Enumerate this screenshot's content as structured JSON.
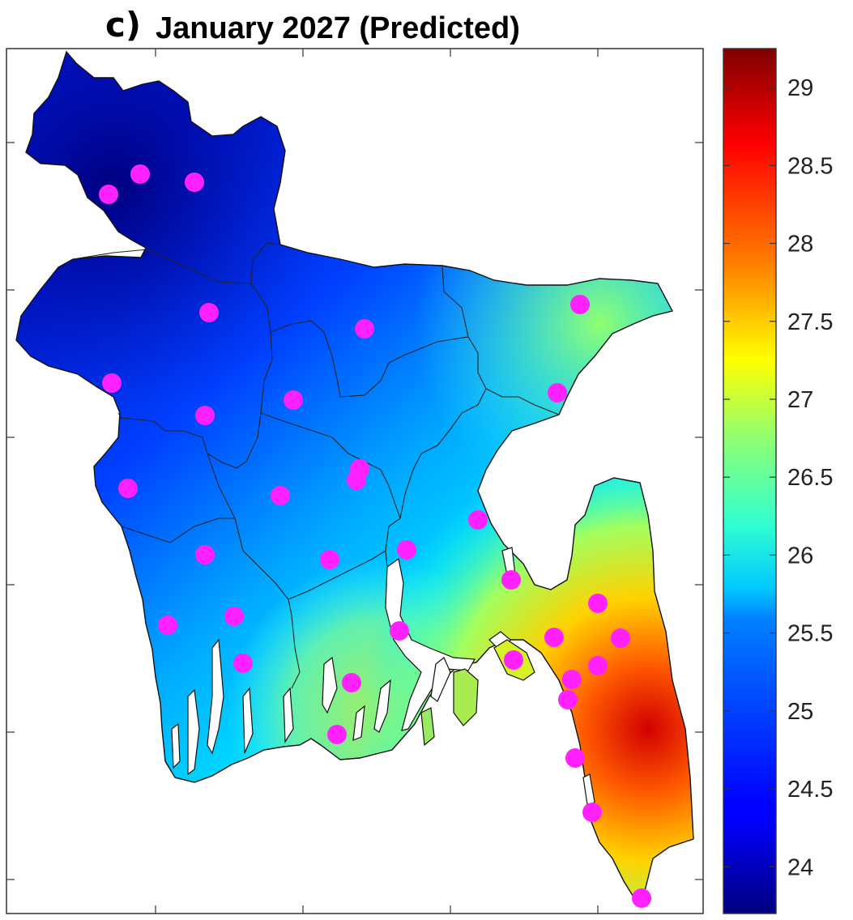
{
  "panel_letter": "c)",
  "title": "January 2027 (Predicted)",
  "colorbar": {
    "min": 23.7,
    "max": 29.25,
    "ticks": [
      "24",
      "24.5",
      "25",
      "25.5",
      "26",
      "26.5",
      "27",
      "27.5",
      "28",
      "28.5",
      "29"
    ],
    "colormap": "jet"
  },
  "map": {
    "region": "Bangladesh",
    "marker_color": "#ff22ff",
    "station_count": 37
  }
}
